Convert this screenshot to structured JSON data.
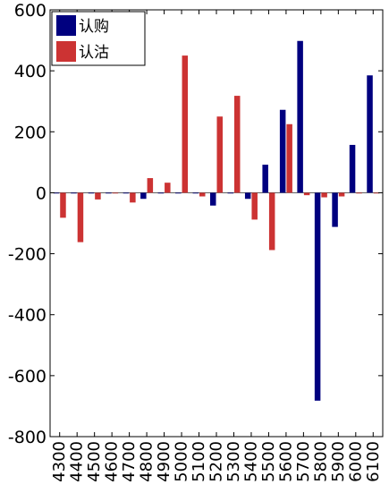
{
  "chart_data": {
    "type": "bar",
    "categories": [
      "4300",
      "4400",
      "4500",
      "4600",
      "4700",
      "4800",
      "4900",
      "5000",
      "5100",
      "5200",
      "5300",
      "5400",
      "5500",
      "5600",
      "5700",
      "5800",
      "5900",
      "6000",
      "6100"
    ],
    "series": [
      {
        "name": "认购",
        "color": "#00007f",
        "values": [
          0,
          0,
          0,
          0,
          0,
          -20,
          0,
          0,
          0,
          -42,
          0,
          -20,
          92,
          272,
          498,
          -682,
          -112,
          157,
          385
        ]
      },
      {
        "name": "认沽",
        "color": "#cc3333",
        "values": [
          -82,
          -162,
          -22,
          -2,
          -32,
          48,
          33,
          450,
          -12,
          250,
          318,
          -88,
          -188,
          225,
          -8,
          -15,
          -12,
          0,
          0
        ]
      }
    ],
    "ylim": [
      -800,
      600
    ],
    "yticks": [
      -800,
      -600,
      -400,
      -200,
      0,
      200,
      400,
      600
    ],
    "title": "",
    "xlabel": "",
    "ylabel": "",
    "legend": "top-left",
    "grid": false
  }
}
